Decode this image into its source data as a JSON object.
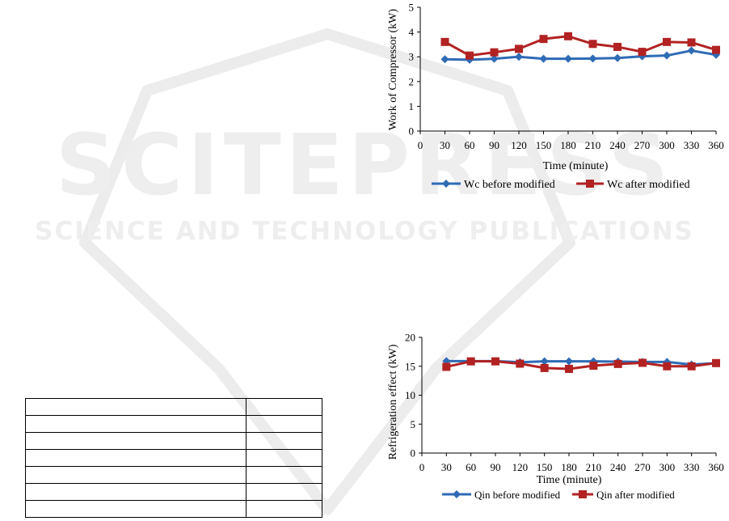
{
  "watermark": {
    "line1": "SCITEPRESS",
    "line2": "SCIENCE AND TECHNOLOGY PUBLICATIONS"
  },
  "colors": {
    "series_blue": "#2e6bb5",
    "series_red": "#b22222",
    "axis": "#000000"
  },
  "table": {
    "rows": 7,
    "columns": 2
  },
  "chart_data": [
    {
      "type": "line",
      "title": "",
      "xlabel": "Time (minute)",
      "ylabel": "Work of Compressor (kW)",
      "x": [
        30,
        60,
        90,
        120,
        150,
        180,
        210,
        240,
        270,
        300,
        330,
        360
      ],
      "xticks": [
        "0",
        "30",
        "60",
        "90",
        "120",
        "150",
        "180",
        "210",
        "240",
        "270",
        "300",
        "330",
        "360"
      ],
      "yticks": [
        "0",
        "1",
        "2",
        "3",
        "4",
        "5"
      ],
      "xlim": [
        0,
        360
      ],
      "ylim": [
        0,
        5
      ],
      "grid": false,
      "legend": "bottom",
      "series": [
        {
          "name": "Wc before modified",
          "marker": "diamond",
          "color": "#2e6bb5",
          "values": [
            2.9,
            2.88,
            2.92,
            3.0,
            2.92,
            2.92,
            2.93,
            2.95,
            3.02,
            3.05,
            3.25,
            3.08
          ]
        },
        {
          "name": "Wc after modified",
          "marker": "square",
          "color": "#b22222",
          "values": [
            3.6,
            3.05,
            3.18,
            3.32,
            3.72,
            3.83,
            3.52,
            3.4,
            3.2,
            3.6,
            3.58,
            3.28
          ]
        }
      ]
    },
    {
      "type": "line",
      "title": "",
      "xlabel": "Time (minute)",
      "ylabel": "Refrigeration effect (kW)",
      "x": [
        30,
        60,
        90,
        120,
        150,
        180,
        210,
        240,
        270,
        300,
        330,
        360
      ],
      "xticks": [
        "0",
        "30",
        "60",
        "90",
        "120",
        "150",
        "180",
        "210",
        "240",
        "270",
        "300",
        "330",
        "360"
      ],
      "yticks": [
        "0",
        "5",
        "10",
        "15",
        "20"
      ],
      "xlim": [
        0,
        360
      ],
      "ylim": [
        0,
        20
      ],
      "grid": false,
      "legend": "bottom",
      "series": [
        {
          "name": "Qin before modified",
          "marker": "diamond",
          "color": "#2e6bb5",
          "values": [
            15.9,
            15.9,
            15.9,
            15.7,
            15.85,
            15.85,
            15.85,
            15.8,
            15.75,
            15.75,
            15.3,
            15.55
          ]
        },
        {
          "name": "Qin after modified",
          "marker": "square",
          "color": "#b22222",
          "values": [
            14.9,
            15.85,
            15.85,
            15.45,
            14.7,
            14.55,
            15.1,
            15.4,
            15.6,
            15.0,
            15.0,
            15.55
          ]
        }
      ]
    }
  ]
}
